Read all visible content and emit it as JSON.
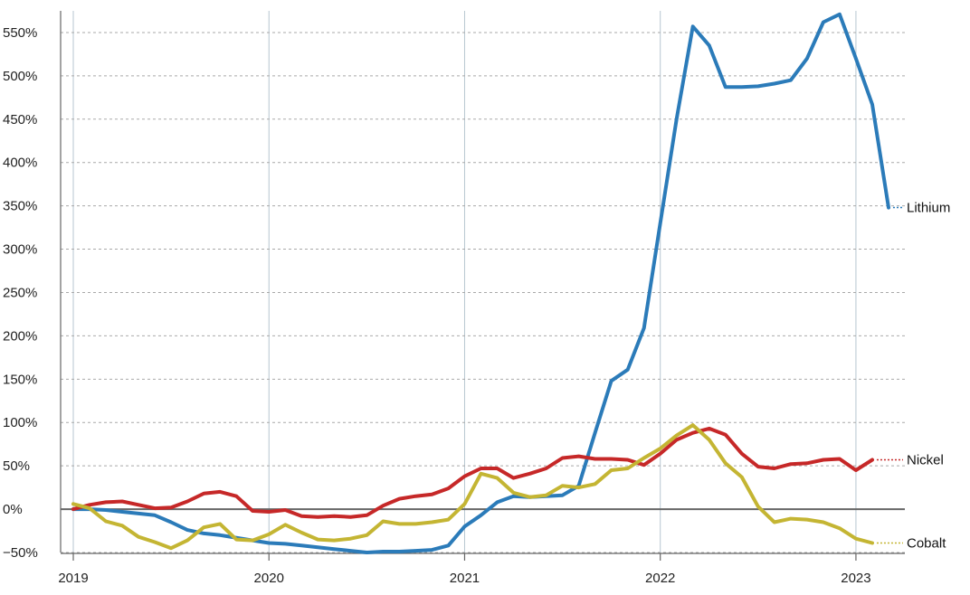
{
  "chart_data": {
    "type": "line",
    "title": "",
    "xlabel": "",
    "ylabel": "",
    "grid": true,
    "legend": "inline-right",
    "xlim": [
      "2019-01",
      "2023-04"
    ],
    "ylim": [
      -50,
      575
    ],
    "x_ticks": [
      {
        "value": "2019-01",
        "label": "2019"
      },
      {
        "value": "2020-01",
        "label": "2020"
      },
      {
        "value": "2021-01",
        "label": "2021"
      },
      {
        "value": "2022-01",
        "label": "2022"
      },
      {
        "value": "2023-01",
        "label": "2023"
      }
    ],
    "y_ticks": [
      {
        "value": -50,
        "label": "−50%"
      },
      {
        "value": 0,
        "label": "0%"
      },
      {
        "value": 50,
        "label": "50%"
      },
      {
        "value": 100,
        "label": "100%"
      },
      {
        "value": 150,
        "label": "150%"
      },
      {
        "value": 200,
        "label": "200%"
      },
      {
        "value": 250,
        "label": "250%"
      },
      {
        "value": 300,
        "label": "300%"
      },
      {
        "value": 350,
        "label": "350%"
      },
      {
        "value": 400,
        "label": "400%"
      },
      {
        "value": 450,
        "label": "450%"
      },
      {
        "value": 500,
        "label": "500%"
      },
      {
        "value": 550,
        "label": "550%"
      }
    ],
    "series": [
      {
        "name": "Lithium",
        "color": "#2b7bb9",
        "points": [
          [
            "2019-01",
            0
          ],
          [
            "2019-02",
            0
          ],
          [
            "2019-03",
            -1
          ],
          [
            "2019-04",
            -3
          ],
          [
            "2019-05",
            -5
          ],
          [
            "2019-06",
            -7
          ],
          [
            "2019-07",
            -15
          ],
          [
            "2019-08",
            -24
          ],
          [
            "2019-09",
            -28
          ],
          [
            "2019-10",
            -30
          ],
          [
            "2019-11",
            -33
          ],
          [
            "2019-12",
            -36
          ],
          [
            "2020-01",
            -39
          ],
          [
            "2020-02",
            -40
          ],
          [
            "2020-03",
            -42
          ],
          [
            "2020-04",
            -44
          ],
          [
            "2020-05",
            -46
          ],
          [
            "2020-06",
            -48
          ],
          [
            "2020-07",
            -50
          ],
          [
            "2020-08",
            -49
          ],
          [
            "2020-09",
            -49
          ],
          [
            "2020-10",
            -48
          ],
          [
            "2020-11",
            -47
          ],
          [
            "2020-12",
            -42
          ],
          [
            "2021-01",
            -20
          ],
          [
            "2021-02",
            -7
          ],
          [
            "2021-03",
            8
          ],
          [
            "2021-04",
            15
          ],
          [
            "2021-05",
            14
          ],
          [
            "2021-06",
            15
          ],
          [
            "2021-07",
            16
          ],
          [
            "2021-08",
            27
          ],
          [
            "2021-09",
            88
          ],
          [
            "2021-10",
            148
          ],
          [
            "2021-11",
            161
          ],
          [
            "2021-12",
            209
          ],
          [
            "2022-01",
            330
          ],
          [
            "2022-02",
            450
          ],
          [
            "2022-03",
            557
          ],
          [
            "2022-04",
            535
          ],
          [
            "2022-05",
            487
          ],
          [
            "2022-06",
            487
          ],
          [
            "2022-07",
            488
          ],
          [
            "2022-08",
            491
          ],
          [
            "2022-09",
            495
          ],
          [
            "2022-10",
            520
          ],
          [
            "2022-11",
            562
          ],
          [
            "2022-12",
            571
          ],
          [
            "2023-01",
            520
          ],
          [
            "2023-02",
            467
          ],
          [
            "2023-03",
            348
          ]
        ]
      },
      {
        "name": "Nickel",
        "color": "#c62828",
        "points": [
          [
            "2019-01",
            0
          ],
          [
            "2019-02",
            5
          ],
          [
            "2019-03",
            8
          ],
          [
            "2019-04",
            9
          ],
          [
            "2019-05",
            5
          ],
          [
            "2019-06",
            1
          ],
          [
            "2019-07",
            2
          ],
          [
            "2019-08",
            9
          ],
          [
            "2019-09",
            18
          ],
          [
            "2019-10",
            20
          ],
          [
            "2019-11",
            15
          ],
          [
            "2019-12",
            -2
          ],
          [
            "2020-01",
            -3
          ],
          [
            "2020-02",
            -1
          ],
          [
            "2020-03",
            -8
          ],
          [
            "2020-04",
            -9
          ],
          [
            "2020-05",
            -8
          ],
          [
            "2020-06",
            -9
          ],
          [
            "2020-07",
            -7
          ],
          [
            "2020-08",
            4
          ],
          [
            "2020-09",
            12
          ],
          [
            "2020-10",
            15
          ],
          [
            "2020-11",
            17
          ],
          [
            "2020-12",
            24
          ],
          [
            "2021-01",
            38
          ],
          [
            "2021-02",
            47
          ],
          [
            "2021-03",
            47
          ],
          [
            "2021-04",
            36
          ],
          [
            "2021-05",
            41
          ],
          [
            "2021-06",
            47
          ],
          [
            "2021-07",
            59
          ],
          [
            "2021-08",
            61
          ],
          [
            "2021-09",
            58
          ],
          [
            "2021-10",
            58
          ],
          [
            "2021-11",
            57
          ],
          [
            "2021-12",
            51
          ],
          [
            "2022-01",
            64
          ],
          [
            "2022-02",
            80
          ],
          [
            "2022-03",
            88
          ],
          [
            "2022-04",
            93
          ],
          [
            "2022-05",
            86
          ],
          [
            "2022-06",
            64
          ],
          [
            "2022-07",
            49
          ],
          [
            "2022-08",
            47
          ],
          [
            "2022-09",
            52
          ],
          [
            "2022-10",
            53
          ],
          [
            "2022-11",
            57
          ],
          [
            "2022-12",
            58
          ],
          [
            "2023-01",
            45
          ],
          [
            "2023-02",
            57
          ]
        ]
      },
      {
        "name": "Cobalt",
        "color": "#c4b533",
        "points": [
          [
            "2019-01",
            6
          ],
          [
            "2019-02",
            1
          ],
          [
            "2019-03",
            -14
          ],
          [
            "2019-04",
            -19
          ],
          [
            "2019-05",
            -32
          ],
          [
            "2019-06",
            -38
          ],
          [
            "2019-07",
            -45
          ],
          [
            "2019-08",
            -36
          ],
          [
            "2019-09",
            -21
          ],
          [
            "2019-10",
            -17
          ],
          [
            "2019-11",
            -35
          ],
          [
            "2019-12",
            -36
          ],
          [
            "2020-01",
            -29
          ],
          [
            "2020-02",
            -18
          ],
          [
            "2020-03",
            -27
          ],
          [
            "2020-04",
            -35
          ],
          [
            "2020-05",
            -36
          ],
          [
            "2020-06",
            -34
          ],
          [
            "2020-07",
            -30
          ],
          [
            "2020-08",
            -14
          ],
          [
            "2020-09",
            -17
          ],
          [
            "2020-10",
            -17
          ],
          [
            "2020-11",
            -15
          ],
          [
            "2020-12",
            -12
          ],
          [
            "2021-01",
            6
          ],
          [
            "2021-02",
            41
          ],
          [
            "2021-03",
            36
          ],
          [
            "2021-04",
            19
          ],
          [
            "2021-05",
            14
          ],
          [
            "2021-06",
            16
          ],
          [
            "2021-07",
            27
          ],
          [
            "2021-08",
            25
          ],
          [
            "2021-09",
            29
          ],
          [
            "2021-10",
            45
          ],
          [
            "2021-11",
            47
          ],
          [
            "2021-12",
            59
          ],
          [
            "2022-01",
            70
          ],
          [
            "2022-02",
            85
          ],
          [
            "2022-03",
            97
          ],
          [
            "2022-04",
            80
          ],
          [
            "2022-05",
            53
          ],
          [
            "2022-06",
            37
          ],
          [
            "2022-07",
            3
          ],
          [
            "2022-08",
            -15
          ],
          [
            "2022-09",
            -11
          ],
          [
            "2022-10",
            -12
          ],
          [
            "2022-11",
            -15
          ],
          [
            "2022-12",
            -22
          ],
          [
            "2023-01",
            -34
          ],
          [
            "2023-02",
            -39
          ]
        ]
      }
    ]
  }
}
